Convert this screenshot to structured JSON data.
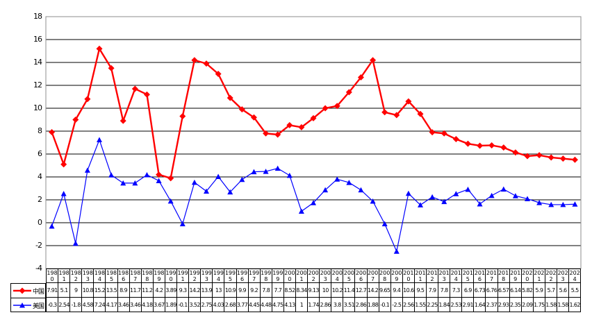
{
  "window": {
    "background": "#FFFFFF"
  },
  "chart_data": {
    "type": "line",
    "title": "",
    "xlabel": "",
    "ylabel": "",
    "categories": [
      "1980",
      "1981",
      "1982",
      "1983",
      "1984",
      "1985",
      "1986",
      "1987",
      "1988",
      "1989",
      "1990",
      "1991",
      "1992",
      "1993",
      "1994",
      "1995",
      "1996",
      "1997",
      "1998",
      "1999",
      "2000",
      "2001",
      "2002",
      "2003",
      "2004",
      "2005",
      "2006",
      "2007",
      "2008",
      "2009",
      "2010",
      "2011",
      "2012",
      "2013",
      "2014",
      "2015",
      "2016",
      "2017",
      "2018",
      "2019",
      "2020",
      "2021",
      "2022",
      "2023",
      "2024"
    ],
    "ylim": [
      -4,
      18
    ],
    "ytick_step": 2,
    "yticks": [
      "18",
      "16",
      "14",
      "12",
      "10",
      "8",
      "6",
      "4",
      "2",
      "0",
      "-2",
      "-4"
    ],
    "grid": "horizontal-only",
    "legend_position": "attached-data-table-left",
    "colors": {
      "grid": "#000000",
      "plot_border": "#8C8C8C",
      "table_border": "#000000",
      "background": "#FFFFFF"
    },
    "series": [
      {
        "name": "中国",
        "key": "china",
        "color": "#FF0000",
        "marker": "diamond",
        "line_width": 2.4,
        "values": [
          7.91,
          5.1,
          9,
          10.8,
          15.2,
          13.5,
          8.9,
          11.7,
          11.2,
          4.2,
          3.89,
          9.3,
          14.2,
          13.9,
          13,
          10.9,
          9.9,
          9.2,
          7.8,
          7.7,
          8.52,
          8.34,
          9.13,
          10,
          10.2,
          11.4,
          12.7,
          14.2,
          9.65,
          9.4,
          10.6,
          9.5,
          7.9,
          7.8,
          7.3,
          6.9,
          6.73,
          6.76,
          6.57,
          6.14,
          5.82,
          5.9,
          5.7,
          5.6,
          5.5
        ]
      },
      {
        "name": "美国",
        "key": "usa",
        "color": "#0000FF",
        "marker": "triangle",
        "line_width": 1.2,
        "values": [
          -0.3,
          2.54,
          -1.8,
          4.58,
          7.24,
          4.17,
          3.46,
          3.46,
          4.18,
          3.67,
          1.89,
          -0.1,
          3.52,
          2.75,
          4.03,
          2.68,
          3.77,
          4.45,
          4.48,
          4.75,
          4.13,
          1,
          1.74,
          2.86,
          3.8,
          3.51,
          2.86,
          1.88,
          -0.1,
          -2.5,
          2.56,
          1.55,
          2.25,
          1.84,
          2.53,
          2.91,
          1.64,
          2.37,
          2.93,
          2.35,
          2.09,
          1.75,
          1.58,
          1.58,
          1.62
        ]
      }
    ]
  }
}
